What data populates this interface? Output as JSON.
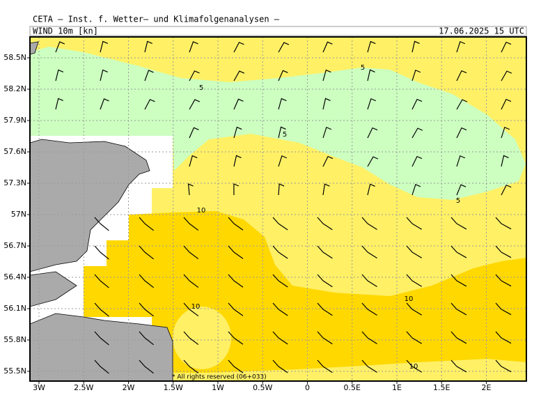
{
  "header": {
    "institute": "CETA – Inst. f. Wetter– und Klimafolgenanalysen –",
    "field": "WIND 10m [kn]",
    "valid": "17.06.2025 15 UTC"
  },
  "map": {
    "lat_labels": [
      "58.5N",
      "58.2N",
      "57.9N",
      "57.6N",
      "57.3N",
      "57N",
      "56.7N",
      "56.4N",
      "56.1N",
      "55.8N",
      "55.5N"
    ],
    "lon_labels": [
      "3W",
      "2.5W",
      "2W",
      "1.5W",
      "1W",
      "0.5W",
      "0",
      "0.5E",
      "1E",
      "1.5E",
      "2E"
    ],
    "contour_labels": [
      "5",
      "5",
      "5",
      "5",
      "10",
      "10",
      "10",
      "10"
    ],
    "copyright": "* All rights reserved (06+033)"
  }
}
